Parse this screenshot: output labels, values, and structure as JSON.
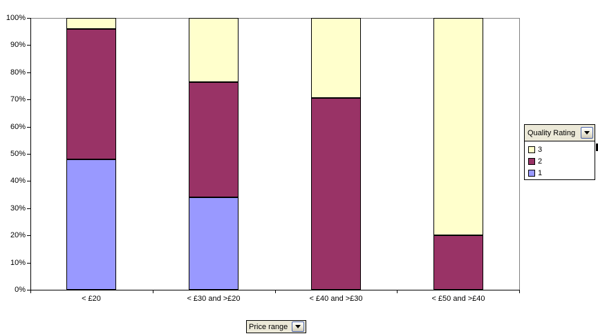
{
  "chart_data": {
    "type": "bar",
    "subtype": "stacked-100-percent-column",
    "title": "",
    "categories": [
      "< £20",
      "< £30 and >£20",
      "< £40 and >£30",
      "< £50 and >£40"
    ],
    "series": [
      {
        "name": "1",
        "color": "#9999FF",
        "values": [
          48,
          34,
          0,
          0
        ]
      },
      {
        "name": "2",
        "color": "#993366",
        "values": [
          48,
          42.5,
          70.5,
          20
        ]
      },
      {
        "name": "3",
        "color": "#FFFFCC",
        "values": [
          4,
          23.5,
          29.5,
          80
        ]
      }
    ],
    "stack_order_bottom_to_top": [
      "1",
      "2",
      "3"
    ],
    "y_tick_labels": [
      "0%",
      "10%",
      "20%",
      "30%",
      "40%",
      "50%",
      "60%",
      "70%",
      "80%",
      "90%",
      "100%"
    ],
    "ylim": [
      0,
      100
    ],
    "gridlines": "horizontal line at 100% only",
    "legend_position": "right",
    "xlabel": "Price range",
    "ylabel": ""
  },
  "legend": {
    "field_label": "Quality Rating",
    "items": [
      {
        "label": "3",
        "color": "#FFFFCC"
      },
      {
        "label": "2",
        "color": "#993366"
      },
      {
        "label": "1",
        "color": "#9999FF"
      }
    ]
  },
  "x_axis_field": {
    "label": "Price range"
  },
  "colors": {
    "axis": "#000000",
    "gridline": "#808080",
    "plot_border": "#808080",
    "field_button_bg": "#ECE9D8",
    "series_1": "#9999FF",
    "series_2": "#993366",
    "series_3": "#FFFFCC",
    "background": "#FFFFFF"
  },
  "icons": {
    "legend_dropdown": "dropdown-arrow-icon",
    "price_range_dropdown": "dropdown-arrow-icon"
  }
}
